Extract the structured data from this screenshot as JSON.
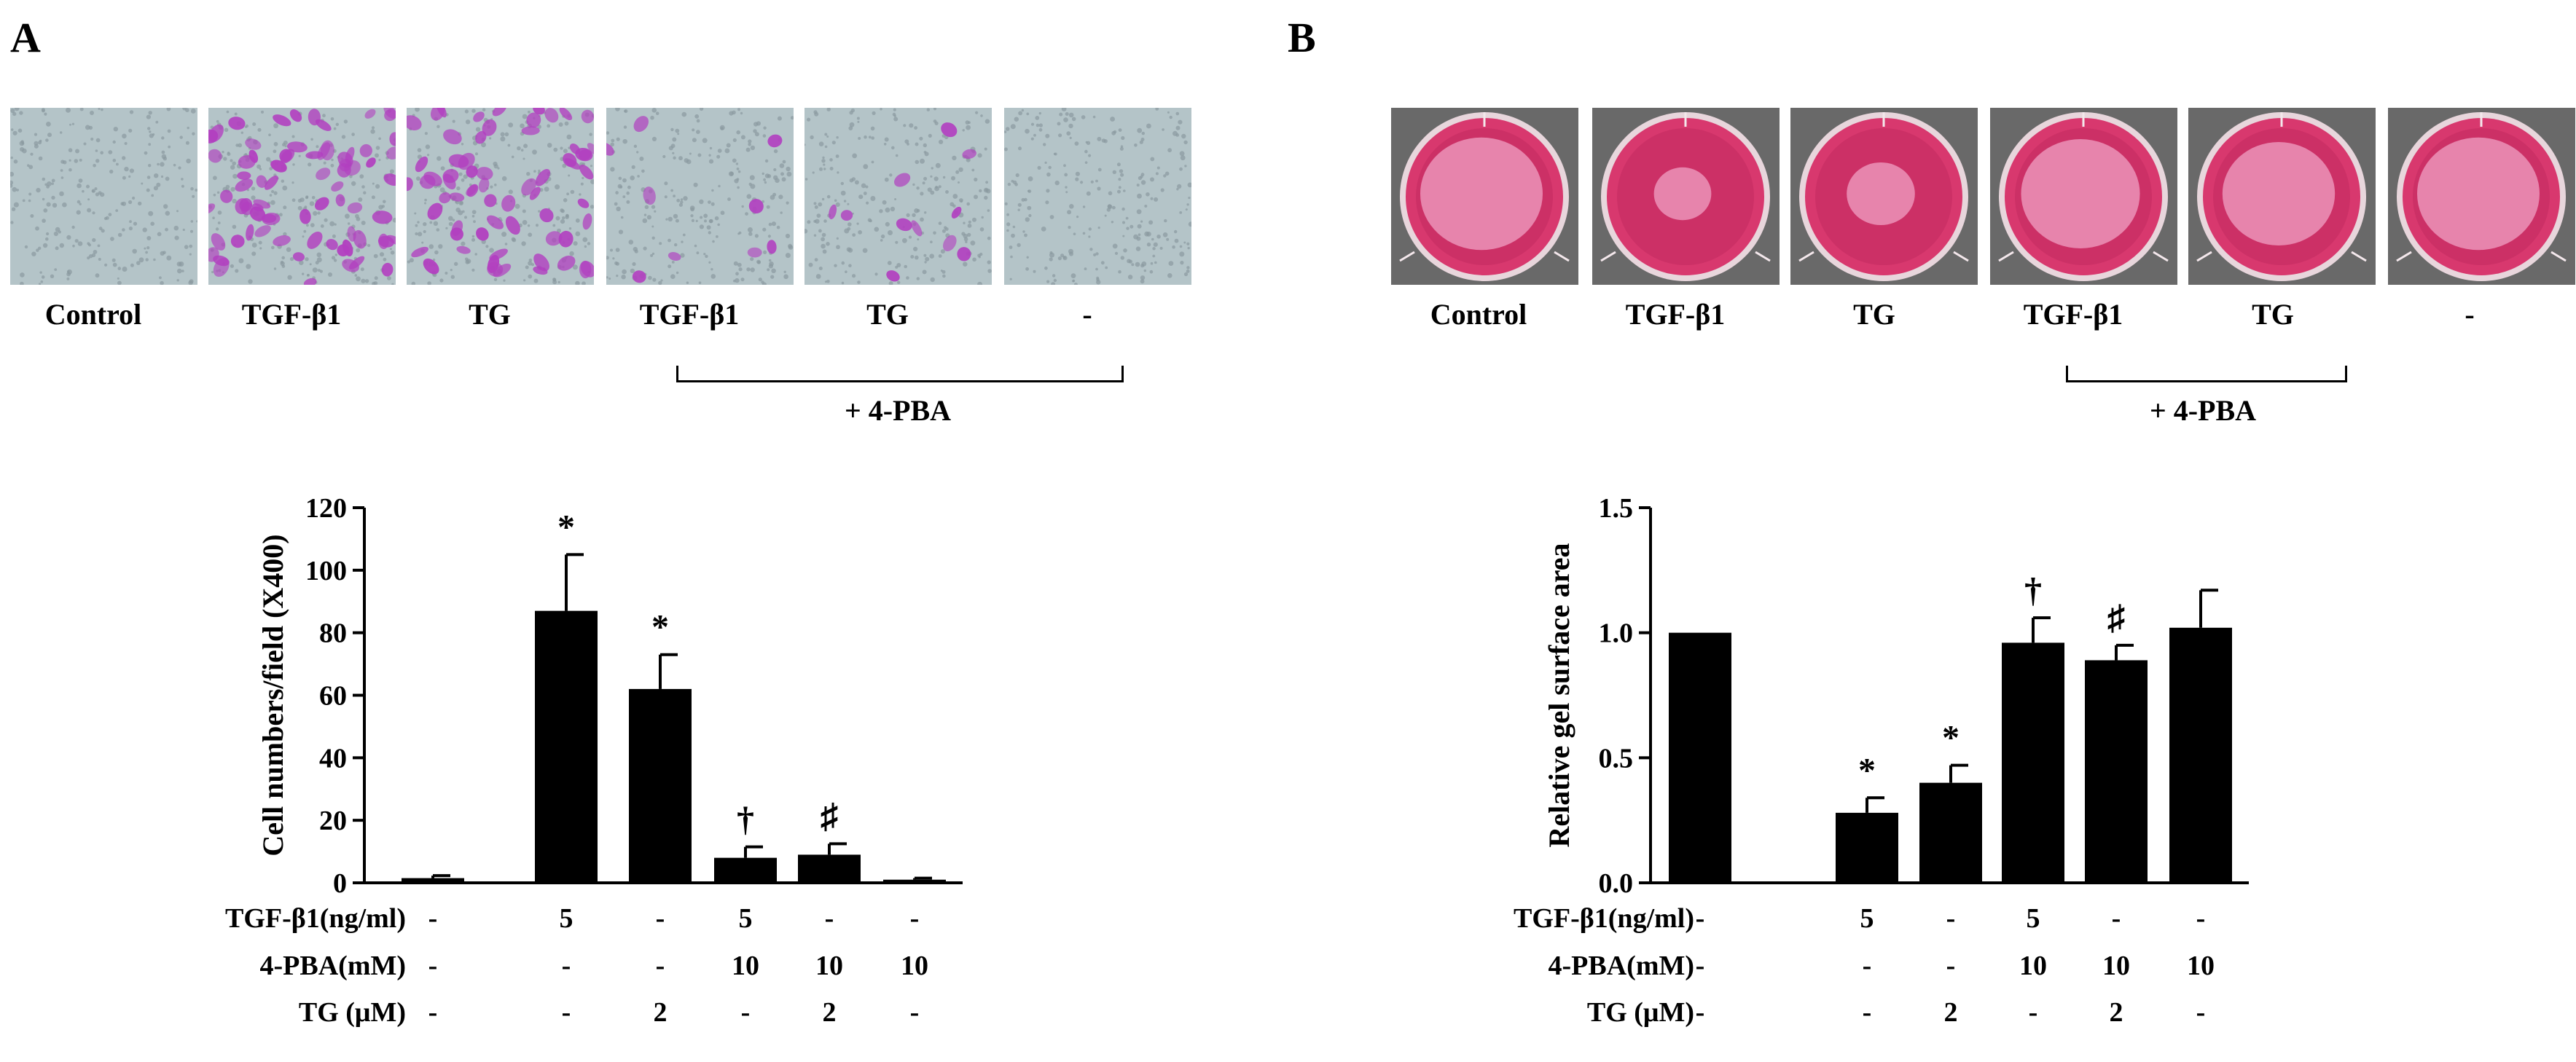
{
  "panels": [
    {
      "letter": "A",
      "images": [
        {
          "label": "Control",
          "kind": "transwell",
          "stain": 0.0
        },
        {
          "label": "TGF-β1",
          "kind": "transwell",
          "stain": 1.0
        },
        {
          "label": "TG",
          "kind": "transwell",
          "stain": 0.85
        },
        {
          "label": "TGF-β1",
          "kind": "transwell",
          "stain": 0.12
        },
        {
          "label": "TG",
          "kind": "transwell",
          "stain": 0.14
        },
        {
          "label": "-",
          "kind": "transwell",
          "stain": 0.0
        }
      ],
      "treatment_bracket_label": "+ 4-PBA"
    },
    {
      "letter": "B",
      "images": [
        {
          "label": "Control",
          "kind": "gel",
          "gel_size": 1.0
        },
        {
          "label": "TGF-β1",
          "kind": "gel",
          "gel_size": 0.28
        },
        {
          "label": "TG",
          "kind": "gel",
          "gel_size": 0.4
        },
        {
          "label": "TGF-β1",
          "kind": "gel",
          "gel_size": 0.96
        },
        {
          "label": "TG",
          "kind": "gel",
          "gel_size": 0.89
        },
        {
          "label": "-",
          "kind": "gel",
          "gel_size": 1.0
        }
      ],
      "treatment_bracket_label": "+ 4-PBA"
    }
  ],
  "chart_data": [
    {
      "type": "bar",
      "panel": "A",
      "ylabel": "Cell numbers/field (X400)",
      "ylim": [
        0,
        120
      ],
      "yticks": [
        0,
        20,
        40,
        60,
        80,
        100,
        120
      ],
      "values": [
        1.5,
        87,
        62,
        8,
        9,
        1
      ],
      "errors": [
        0.8,
        18,
        11,
        3.5,
        3.5,
        0.5
      ],
      "annotations": [
        "",
        "*",
        "*",
        "†",
        "♯",
        ""
      ],
      "table_rows": [
        {
          "label": "TGF-β1(ng/ml)",
          "cells": [
            "-",
            "5",
            "-",
            "5",
            "-",
            "-"
          ]
        },
        {
          "label": "4-PBA(mM)",
          "cells": [
            "-",
            "-",
            "-",
            "10",
            "10",
            "10"
          ]
        },
        {
          "label": "TG (μM)",
          "cells": [
            "-",
            "-",
            "2",
            "-",
            "2",
            "-"
          ]
        }
      ]
    },
    {
      "type": "bar",
      "panel": "B",
      "ylabel": "Relative gel surface area",
      "ylim": [
        0,
        1.5
      ],
      "yticks": [
        "0.0",
        "0.5",
        "1.0",
        "1.5"
      ],
      "values": [
        1.0,
        0.28,
        0.4,
        0.96,
        0.89,
        1.02
      ],
      "errors": [
        0,
        0.06,
        0.07,
        0.1,
        0.06,
        0.15
      ],
      "annotations": [
        "",
        "*",
        "*",
        "†",
        "♯",
        ""
      ],
      "table_rows": [
        {
          "label": "TGF-β1(ng/ml)",
          "cells": [
            "-",
            "5",
            "-",
            "5",
            "-",
            "-"
          ]
        },
        {
          "label": "4-PBA(mM)",
          "cells": [
            "-",
            "-",
            "-",
            "10",
            "10",
            "10"
          ]
        },
        {
          "label": "TG (μM)",
          "cells": [
            "-",
            "-",
            "2",
            "-",
            "2",
            "-"
          ]
        }
      ]
    }
  ],
  "colors": {
    "bar": "#000000",
    "transwell_bg": "#b4c4c8",
    "cell_stain": "#b23fc0",
    "well_pink": "#d8386e",
    "gel": "#f0a0c4"
  }
}
